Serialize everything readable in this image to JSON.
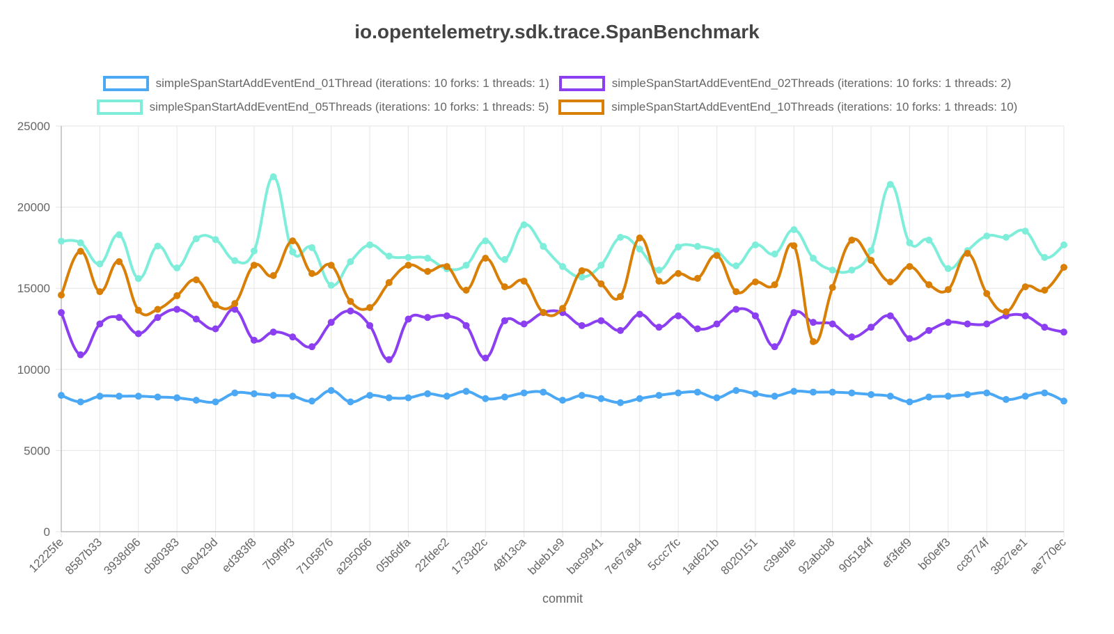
{
  "chart_data": {
    "type": "line",
    "title": "io.opentelemetry.sdk.trace.SpanBenchmark",
    "xlabel": "commit",
    "ylabel": "",
    "ylim": [
      0,
      25000
    ],
    "yticks": [
      0,
      5000,
      10000,
      15000,
      20000,
      25000
    ],
    "grid": true,
    "legend": "top",
    "x_tick_labels": [
      "12225fe",
      "8587b33",
      "3938d96",
      "cb80383",
      "0e0429d",
      "ed383f8",
      "7b9f9f3",
      "7105876",
      "a295066",
      "05b6dfa",
      "22fdec2",
      "1733d2c",
      "48f13ca",
      "bdeb1e9",
      "bac9941",
      "7e67a84",
      "5ccc7fc",
      "1ad621b",
      "8020151",
      "c39ebfe",
      "92abcb8",
      "905184f",
      "ef3fef9",
      "b60eff3",
      "cc8774f",
      "3827ee1",
      "ae770ec"
    ],
    "series": [
      {
        "name": "simpleSpanStartAddEventEnd_01Thread (iterations: 10 forks: 1 threads: 1)",
        "color": "#4aa8f5",
        "values": [
          8400,
          8000,
          8350,
          8350,
          8350,
          8300,
          8250,
          8100,
          8000,
          8550,
          8500,
          8400,
          8350,
          8050,
          8700,
          8000,
          8400,
          8250,
          8250,
          8500,
          8350,
          8650,
          8200,
          8300,
          8550,
          8600,
          8100,
          8400,
          8200,
          7950,
          8200,
          8400,
          8550,
          8600,
          8250,
          8700,
          8500,
          8350,
          8650,
          8600,
          8600,
          8550,
          8450,
          8350,
          8000,
          8300,
          8350,
          8450,
          8550,
          8150,
          8350,
          8550,
          8050
        ]
      },
      {
        "name": "simpleSpanStartAddEventEnd_02Threads (iterations: 10 forks: 1 threads: 2)",
        "color": "#8c3ff0",
        "values": [
          13500,
          10900,
          12800,
          13200,
          12200,
          13200,
          13700,
          13100,
          12500,
          13700,
          11800,
          12300,
          12000,
          11400,
          12900,
          13600,
          12700,
          10600,
          13100,
          13200,
          13300,
          12700,
          10700,
          13000,
          12800,
          13500,
          13500,
          12700,
          13000,
          12400,
          13400,
          12600,
          13300,
          12500,
          12800,
          13700,
          13300,
          11400,
          13500,
          12900,
          12800,
          12000,
          12600,
          13300,
          11900,
          12400,
          12900,
          12800,
          12800,
          13300,
          13300,
          12600,
          12300
        ]
      },
      {
        "name": "simpleSpanStartAddEventEnd_05Threads (iterations: 10 forks: 1 threads: 5)",
        "color": "#7eeedb",
        "values": [
          17900,
          17800,
          16500,
          18300,
          15600,
          17600,
          16250,
          18050,
          18000,
          16700,
          17300,
          21870,
          17240,
          17500,
          15180,
          16640,
          17670,
          16980,
          16900,
          16850,
          16200,
          16420,
          17920,
          16770,
          18910,
          17580,
          16340,
          15690,
          16420,
          18140,
          17410,
          16120,
          17540,
          17580,
          17280,
          16380,
          17670,
          17110,
          18610,
          16850,
          16120,
          16120,
          17320,
          21400,
          17800,
          17970,
          16210,
          17320,
          18220,
          18140,
          18520,
          16900,
          17670
        ]
      },
      {
        "name": "simpleSpanStartAddEventEnd_10Threads (iterations: 10 forks: 1 threads: 10)",
        "color": "#d97f06",
        "values": [
          14580,
          17280,
          14790,
          16640,
          13640,
          13700,
          14540,
          15520,
          13980,
          14060,
          16420,
          15780,
          17920,
          15910,
          16420,
          14190,
          13810,
          15350,
          16420,
          16040,
          16340,
          14880,
          16850,
          15090,
          15440,
          13510,
          13760,
          16080,
          15270,
          14490,
          18100,
          15440,
          15910,
          15610,
          17020,
          14790,
          15390,
          15220,
          17620,
          11710,
          15050,
          17970,
          16720,
          15390,
          16340,
          15220,
          14920,
          17150,
          14670,
          13550,
          15090,
          14880,
          16290
        ]
      }
    ]
  }
}
